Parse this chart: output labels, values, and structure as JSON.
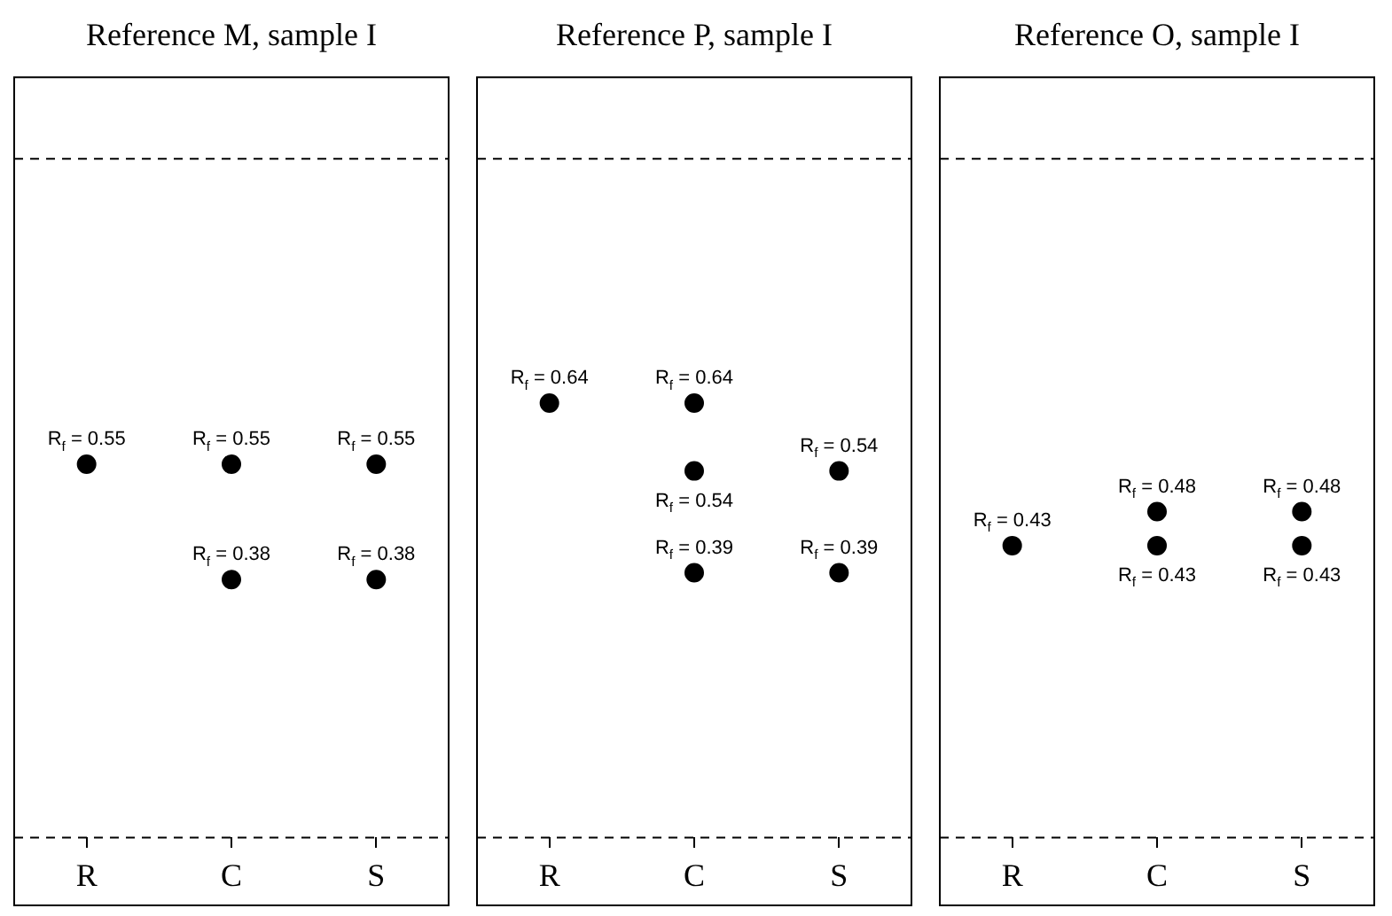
{
  "chart_data": [
    {
      "type": "scatter",
      "title": "Reference M, sample I",
      "categories": [
        "R",
        "C",
        "S"
      ],
      "ylim": [
        -0.1,
        1.12
      ],
      "tick_labels": "x",
      "grid": false,
      "legend": false,
      "marker": "circle",
      "series": [
        {
          "color": "#000000",
          "x": [
            "R",
            "C",
            "S",
            "C",
            "S"
          ],
          "values": [
            0.55,
            0.55,
            0.55,
            0.38,
            0.38
          ],
          "value_labels": [
            "R$_{f}$ = 0.55",
            "R$_{f}$ = 0.55",
            "R$_{f}$ = 0.55",
            "R$_{f}$ = 0.38",
            "R$_{f}$ = 0.38"
          ]
        }
      ],
      "ref_lines": [
        {
          "axis": "y",
          "value": 0,
          "line_style": "dashed"
        },
        {
          "axis": "y",
          "value": 1,
          "line_style": "dashed"
        }
      ]
    },
    {
      "type": "scatter",
      "title": "Reference P, sample I",
      "categories": [
        "R",
        "C",
        "S"
      ],
      "ylim": [
        -0.1,
        1.12
      ],
      "tick_labels": "x",
      "grid": false,
      "legend": false,
      "marker": "circle",
      "series": [
        {
          "color": "#000000",
          "x": [
            "R",
            "C",
            "C",
            "S",
            "C",
            "S"
          ],
          "values": [
            0.64,
            0.64,
            0.54,
            0.54,
            0.39,
            0.39
          ],
          "value_labels": [
            "R$_{f}$ = 0.64",
            "R$_{f}$ = 0.64",
            "R$_{f}$ = 0.54",
            "R$_{f}$ = 0.54",
            "R$_{f}$ = 0.39",
            "R$_{f}$ = 0.39"
          ]
        }
      ],
      "ref_lines": [
        {
          "axis": "y",
          "value": 0,
          "line_style": "dashed"
        },
        {
          "axis": "y",
          "value": 1,
          "line_style": "dashed"
        }
      ]
    },
    {
      "type": "scatter",
      "title": "Reference O, sample I",
      "categories": [
        "R",
        "C",
        "S"
      ],
      "ylim": [
        -0.1,
        1.12
      ],
      "tick_labels": "x",
      "grid": false,
      "legend": false,
      "marker": "circle",
      "series": [
        {
          "color": "#000000",
          "x": [
            "R",
            "C",
            "S",
            "C",
            "S"
          ],
          "values": [
            0.43,
            0.48,
            0.48,
            0.43,
            0.43
          ],
          "value_labels": [
            "R$_{f}$ = 0.43",
            "R$_{f}$ = 0.48",
            "R$_{f}$ = 0.48",
            "R$_{f}$ = 0.43",
            "R$_{f}$ = 0.43"
          ]
        }
      ],
      "ref_lines": [
        {
          "axis": "y",
          "value": 0,
          "line_style": "dashed"
        },
        {
          "axis": "y",
          "value": 1,
          "line_style": "dashed"
        }
      ]
    }
  ]
}
